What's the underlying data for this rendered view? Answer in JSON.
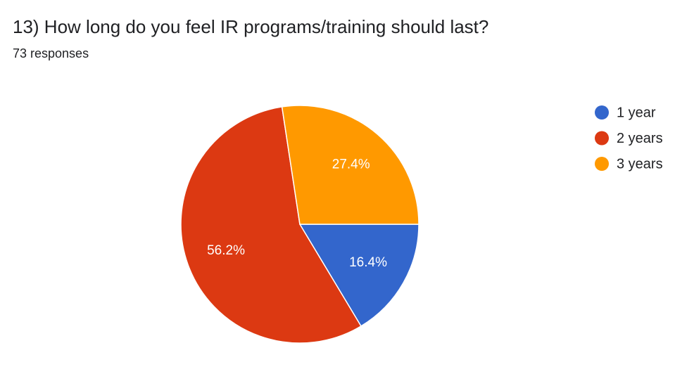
{
  "chart_data": {
    "type": "pie",
    "title": "13) How long do you feel IR programs/training should last?",
    "subtitle": "73 responses",
    "categories": [
      "1 year",
      "2 years",
      "3 years"
    ],
    "values": [
      16.4,
      56.2,
      27.4
    ],
    "value_labels": [
      "16.4%",
      "56.2%",
      "27.4%"
    ],
    "colors": [
      "#3366cc",
      "#dc3912",
      "#ff9900"
    ],
    "legend": "right"
  }
}
